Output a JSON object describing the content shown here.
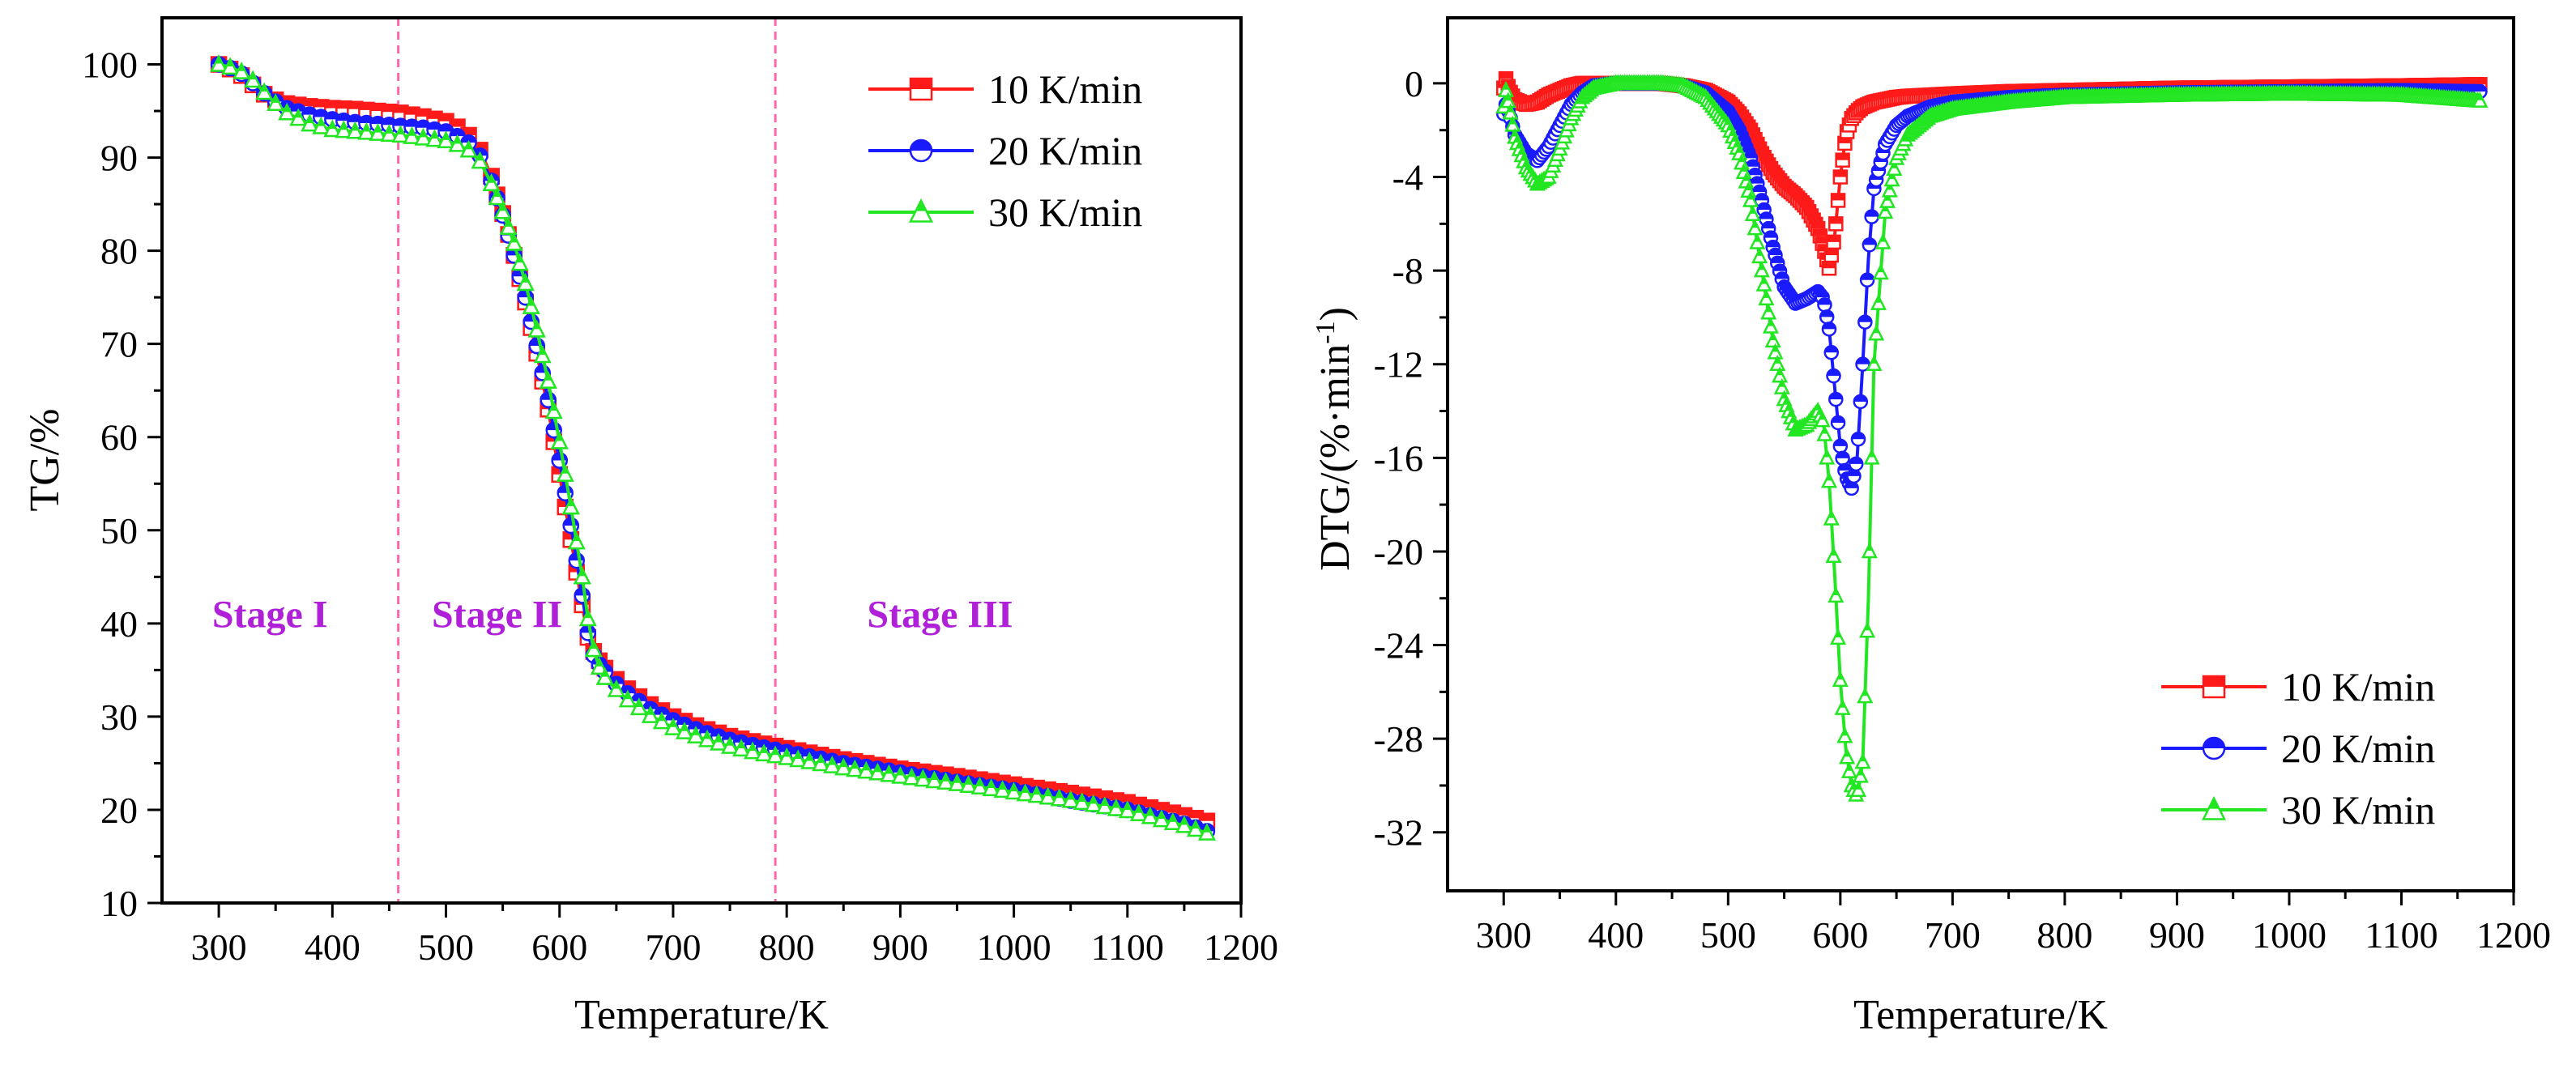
{
  "colors": {
    "series_10": "#ff1a1a",
    "series_20": "#1a1aff",
    "series_30": "#22e622",
    "stage_line": "#ff66aa",
    "stage_text": "#b020d8"
  },
  "chart_data": [
    {
      "id": "tg",
      "type": "line",
      "title": "",
      "xlabel": "Temperature/K",
      "ylabel": "TG/%",
      "xlim": [
        250,
        1200
      ],
      "ylim": [
        10,
        105
      ],
      "xticks": [
        300,
        400,
        500,
        600,
        700,
        800,
        900,
        1000,
        1100,
        1200
      ],
      "yticks": [
        10,
        20,
        30,
        40,
        50,
        60,
        70,
        80,
        90,
        100
      ],
      "legend_position": "top-right",
      "stage_boundaries": [
        458,
        790
      ],
      "stage_labels": [
        {
          "text": "Stage I",
          "x": 345,
          "y": 41
        },
        {
          "text": "Stage II",
          "x": 545,
          "y": 41
        },
        {
          "text": "Stage III",
          "x": 935,
          "y": 41
        }
      ],
      "x": [
        300,
        310,
        320,
        330,
        340,
        350,
        360,
        380,
        400,
        420,
        440,
        460,
        480,
        500,
        510,
        520,
        530,
        540,
        550,
        560,
        570,
        580,
        590,
        600,
        610,
        620,
        625,
        630,
        635,
        640,
        650,
        660,
        680,
        700,
        725,
        750,
        775,
        800,
        850,
        900,
        950,
        1000,
        1050,
        1100,
        1150,
        1170
      ],
      "series": [
        {
          "name": "10 K/min",
          "marker": "square-half",
          "values": [
            100,
            99.5,
            98.8,
            97.8,
            96.8,
            96.2,
            95.8,
            95.5,
            95.3,
            95.2,
            95.0,
            94.8,
            94.4,
            93.9,
            93.3,
            92.4,
            90.8,
            88.0,
            84.0,
            79.5,
            74.5,
            69.0,
            63.0,
            56.0,
            49.0,
            42.0,
            38.5,
            37.0,
            36.0,
            35.2,
            34.0,
            33.0,
            31.3,
            30.0,
            28.8,
            27.9,
            27.2,
            26.6,
            25.4,
            24.4,
            23.6,
            22.7,
            21.8,
            20.8,
            19.4,
            18.8
          ]
        },
        {
          "name": "20 K/min",
          "marker": "circle-half",
          "values": [
            100,
            99.6,
            99.0,
            98.0,
            96.9,
            96.0,
            95.3,
            94.6,
            94.1,
            93.8,
            93.6,
            93.4,
            93.2,
            92.8,
            92.3,
            91.6,
            90.2,
            87.5,
            83.8,
            79.5,
            75.0,
            69.8,
            64.0,
            57.5,
            50.5,
            43.0,
            39.0,
            36.6,
            35.6,
            34.8,
            33.5,
            32.5,
            30.8,
            29.6,
            28.4,
            27.5,
            26.8,
            26.2,
            25.0,
            24.0,
            23.0,
            22.1,
            21.0,
            20.0,
            18.5,
            17.7
          ]
        },
        {
          "name": "30 K/min",
          "marker": "triangle-half",
          "values": [
            100,
            99.7,
            99.2,
            98.3,
            97.0,
            95.8,
            94.8,
            93.6,
            93.0,
            92.8,
            92.6,
            92.4,
            92.1,
            91.8,
            91.4,
            90.8,
            89.6,
            87.2,
            84.2,
            80.8,
            76.5,
            71.5,
            66.0,
            59.5,
            52.5,
            45.0,
            40.5,
            37.2,
            35.3,
            34.2,
            32.9,
            31.8,
            30.1,
            28.8,
            27.7,
            26.8,
            26.1,
            25.6,
            24.5,
            23.6,
            22.8,
            21.9,
            21.0,
            19.9,
            18.3,
            17.5
          ]
        }
      ]
    },
    {
      "id": "dtg",
      "type": "line",
      "title": "",
      "xlabel": "Temperature/K",
      "ylabel": "DTG/(%·min-1)",
      "ylabel_parts": [
        "DTG/(%·min",
        "-1",
        ")"
      ],
      "xlim": [
        250,
        1200
      ],
      "ylim": [
        -34.5,
        2.8
      ],
      "xticks": [
        300,
        400,
        500,
        600,
        700,
        800,
        900,
        1000,
        1100,
        1200
      ],
      "yticks": [
        0,
        -4,
        -8,
        -12,
        -16,
        -20,
        -24,
        -28,
        -32
      ],
      "ytick_labels": [
        "0",
        "-4",
        "-8",
        "-12",
        "-16",
        "-20",
        "-24",
        "-28",
        "-32"
      ],
      "legend_position": "bottom-right",
      "x": [
        300,
        302,
        305,
        310,
        320,
        330,
        340,
        350,
        360,
        370,
        380,
        400,
        420,
        440,
        460,
        480,
        500,
        510,
        520,
        530,
        540,
        550,
        560,
        570,
        580,
        585,
        590,
        595,
        600,
        605,
        610,
        615,
        620,
        625,
        630,
        640,
        650,
        660,
        680,
        700,
        750,
        800,
        900,
        1000,
        1100,
        1170
      ],
      "series": [
        {
          "name": "10 K/min",
          "marker": "square-half",
          "values": [
            -0.2,
            0.2,
            -0.3,
            -0.7,
            -0.9,
            -0.8,
            -0.5,
            -0.3,
            -0.1,
            0.0,
            0.0,
            0.0,
            0.0,
            0.0,
            -0.1,
            -0.3,
            -0.8,
            -1.3,
            -2.0,
            -3.0,
            -3.8,
            -4.4,
            -4.8,
            -5.3,
            -6.2,
            -7.0,
            -7.9,
            -6.5,
            -4.0,
            -2.2,
            -1.5,
            -1.2,
            -1.0,
            -0.9,
            -0.8,
            -0.7,
            -0.6,
            -0.55,
            -0.5,
            -0.45,
            -0.35,
            -0.3,
            -0.2,
            -0.15,
            -0.1,
            -0.05
          ]
        },
        {
          "name": "20 K/min",
          "marker": "circle-half",
          "values": [
            -1.3,
            -0.9,
            -1.3,
            -2.2,
            -3.0,
            -3.3,
            -2.7,
            -1.8,
            -0.9,
            -0.4,
            -0.1,
            0.0,
            0.0,
            0.0,
            -0.1,
            -0.4,
            -1.2,
            -2.0,
            -3.2,
            -5.0,
            -7.0,
            -8.7,
            -9.4,
            -9.2,
            -8.9,
            -9.2,
            -10.5,
            -13.0,
            -15.5,
            -16.8,
            -17.3,
            -16.0,
            -12.0,
            -7.5,
            -4.5,
            -2.6,
            -1.8,
            -1.4,
            -1.0,
            -0.8,
            -0.6,
            -0.5,
            -0.4,
            -0.35,
            -0.3,
            -0.35
          ]
        },
        {
          "name": "30 K/min",
          "marker": "triangle-half",
          "values": [
            -1.0,
            -0.3,
            -1.0,
            -2.3,
            -3.6,
            -4.3,
            -4.0,
            -2.8,
            -1.5,
            -0.6,
            -0.2,
            0.0,
            0.0,
            0.0,
            -0.1,
            -0.6,
            -1.8,
            -3.0,
            -5.0,
            -8.0,
            -11.0,
            -13.5,
            -14.8,
            -14.6,
            -14.0,
            -14.5,
            -17.0,
            -21.0,
            -25.5,
            -28.5,
            -30.0,
            -30.5,
            -29.0,
            -22.0,
            -12.0,
            -5.5,
            -3.2,
            -2.2,
            -1.4,
            -1.1,
            -0.8,
            -0.6,
            -0.5,
            -0.45,
            -0.5,
            -0.75
          ]
        }
      ]
    }
  ]
}
